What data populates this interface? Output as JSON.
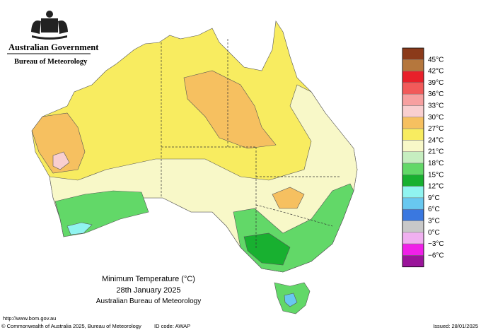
{
  "header": {
    "government": "Australian Government",
    "agency": "Bureau of Meteorology"
  },
  "legend": {
    "items": [
      {
        "label": "45°C",
        "color": "#8b3a1a"
      },
      {
        "label": "42°C",
        "color": "#b5773d"
      },
      {
        "label": "39°C",
        "color": "#e8202a"
      },
      {
        "label": "36°C",
        "color": "#f25a5a"
      },
      {
        "label": "33°C",
        "color": "#f7a0a0"
      },
      {
        "label": "30°C",
        "color": "#f9cfd0"
      },
      {
        "label": "27°C",
        "color": "#f6c060"
      },
      {
        "label": "24°C",
        "color": "#f8ec60"
      },
      {
        "label": "21°C",
        "color": "#f8f8c8"
      },
      {
        "label": "18°C",
        "color": "#c6eec0"
      },
      {
        "label": "15°C",
        "color": "#62d868"
      },
      {
        "label": "12°C",
        "color": "#18b030"
      },
      {
        "label": "9°C",
        "color": "#90f4f0"
      },
      {
        "label": "6°C",
        "color": "#68c8f0"
      },
      {
        "label": "3°C",
        "color": "#3a78e0"
      },
      {
        "label": "0°C",
        "color": "#c8c8c8"
      },
      {
        "label": "−3°C",
        "color": "#f0b0f0"
      },
      {
        "label": "−6°C",
        "color": "#f020e8"
      },
      {
        "label": "",
        "color": "#9a149a"
      }
    ]
  },
  "map": {
    "title": "Minimum Temperature (°C)",
    "date": "28th January 2025",
    "source": "Australian Bureau of Meteorology"
  },
  "footer": {
    "url": "http://www.bom.gov.au",
    "copyright": "© Commonwealth of Australia 2025, Bureau of Meteorology",
    "id_code": "ID code: AWAP",
    "issued": "Issued: 28/01/2025"
  }
}
